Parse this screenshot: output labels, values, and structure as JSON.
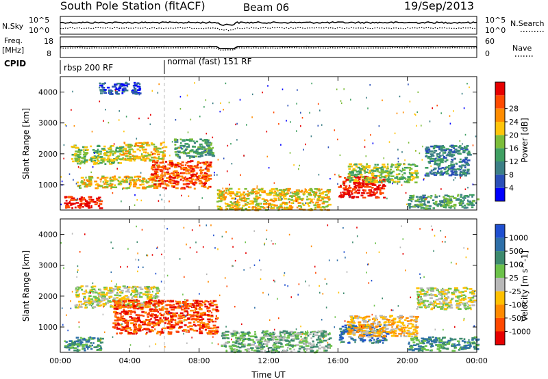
{
  "header": {
    "station": "South Pole Station (fitACF)",
    "beam": "Beam 06",
    "date": "19/Sep/2013"
  },
  "status_panels": {
    "nsky_label": "N.Sky",
    "nsearch_label": "N.Search",
    "freq_label_top": "Freq.",
    "freq_label_bottom": "[MHz]",
    "nave_label": "Nave",
    "cpid_label": "CPID",
    "left_tick_hi": "10^5",
    "left_tick_lo": "10^0",
    "right_tick_hi": "10^5",
    "right_tick_lo": "10^0",
    "freq_ticks": [
      "18",
      "8"
    ],
    "nave_ticks": [
      "60",
      "0"
    ],
    "cpid_segments": [
      {
        "label": "rbsp 200 RF",
        "start_hour": 0,
        "end_hour": 6
      },
      {
        "label": "normal (fast) 151 RF",
        "start_hour": 6,
        "end_hour": 24
      }
    ]
  },
  "chart_data": [
    {
      "type": "heatmap",
      "title": "",
      "xlabel": "",
      "ylabel": "Slant Range [km]",
      "x_ticks": [
        "00:00",
        "04:00",
        "08:00",
        "12:00",
        "16:00",
        "20:00",
        "00:00"
      ],
      "y_ticks": [
        1000,
        2000,
        3000,
        4000
      ],
      "xlim_hours": [
        0,
        24
      ],
      "ylim_km": [
        180,
        4500
      ],
      "colorbar": {
        "label": "Power [dB]",
        "tick_labels": [
          "4",
          "8",
          "12",
          "16",
          "20",
          "24",
          "28"
        ],
        "colors": [
          "#0000ff",
          "#2a4fb8",
          "#3c7f86",
          "#3f9f62",
          "#7cbd3a",
          "#ffc40a",
          "#ff8c00",
          "#ff4a00",
          "#e60000"
        ]
      },
      "echo_regions": [
        {
          "t0": 0.2,
          "t1": 2.3,
          "r0": 250,
          "r1": 650,
          "level": 8
        },
        {
          "t0": 0.8,
          "t1": 5.5,
          "r0": 900,
          "r1": 1300,
          "level": 5
        },
        {
          "t0": 0.6,
          "t1": 3.5,
          "r0": 1700,
          "r1": 2300,
          "level": 4
        },
        {
          "t0": 2.2,
          "t1": 4.6,
          "r0": 3950,
          "r1": 4350,
          "level": 1
        },
        {
          "t0": 3.5,
          "t1": 6.0,
          "r0": 1800,
          "r1": 2400,
          "level": 5
        },
        {
          "t0": 5.2,
          "t1": 8.6,
          "r0": 900,
          "r1": 1800,
          "level": 7
        },
        {
          "t0": 6.5,
          "t1": 8.8,
          "r0": 1900,
          "r1": 2500,
          "level": 3
        },
        {
          "t0": 9.0,
          "t1": 15.5,
          "r0": 200,
          "r1": 900,
          "level": 5
        },
        {
          "t0": 16.0,
          "t1": 18.6,
          "r0": 600,
          "r1": 1300,
          "level": 8
        },
        {
          "t0": 16.5,
          "t1": 20.5,
          "r0": 1100,
          "r1": 1700,
          "level": 4
        },
        {
          "t0": 21.0,
          "t1": 23.5,
          "r0": 1300,
          "r1": 2300,
          "level": 2
        },
        {
          "t0": 20.0,
          "t1": 24.0,
          "r0": 250,
          "r1": 700,
          "level": 3
        }
      ]
    },
    {
      "type": "heatmap",
      "title": "",
      "xlabel": "Time UT",
      "ylabel": "Slant Range [km]",
      "x_ticks": [
        "00:00",
        "04:00",
        "08:00",
        "12:00",
        "16:00",
        "20:00",
        "00:00"
      ],
      "y_ticks": [
        1000,
        2000,
        3000,
        4000
      ],
      "xlim_hours": [
        0,
        24
      ],
      "ylim_km": [
        180,
        4500
      ],
      "colorbar": {
        "label": "Velocity [m s^-1]",
        "tick_labels": [
          "1000",
          "500",
          "100",
          "25",
          "-25",
          "-100",
          "-500",
          "-1000"
        ],
        "colors": [
          "#1f4fd0",
          "#2e6fa8",
          "#3d8a6e",
          "#6cc24a",
          "#b8b8b8",
          "#ffc000",
          "#ff8a00",
          "#ff4800",
          "#e60000"
        ]
      },
      "echo_regions": [
        {
          "t0": 0.2,
          "t1": 2.4,
          "r0": 250,
          "r1": 700,
          "level": 2
        },
        {
          "t0": 0.8,
          "t1": 5.6,
          "r0": 1650,
          "r1": 2350,
          "level": 4
        },
        {
          "t0": 3.0,
          "t1": 9.0,
          "r0": 800,
          "r1": 1900,
          "level": 7
        },
        {
          "t0": 9.2,
          "t1": 15.5,
          "r0": 200,
          "r1": 900,
          "level": 3
        },
        {
          "t0": 16.0,
          "t1": 18.8,
          "r0": 500,
          "r1": 1100,
          "level": 1
        },
        {
          "t0": 16.5,
          "t1": 20.5,
          "r0": 700,
          "r1": 1400,
          "level": 5
        },
        {
          "t0": 20.5,
          "t1": 23.8,
          "r0": 1600,
          "r1": 2300,
          "level": 4
        },
        {
          "t0": 20.0,
          "t1": 24.0,
          "r0": 250,
          "r1": 700,
          "level": 2
        }
      ]
    }
  ]
}
